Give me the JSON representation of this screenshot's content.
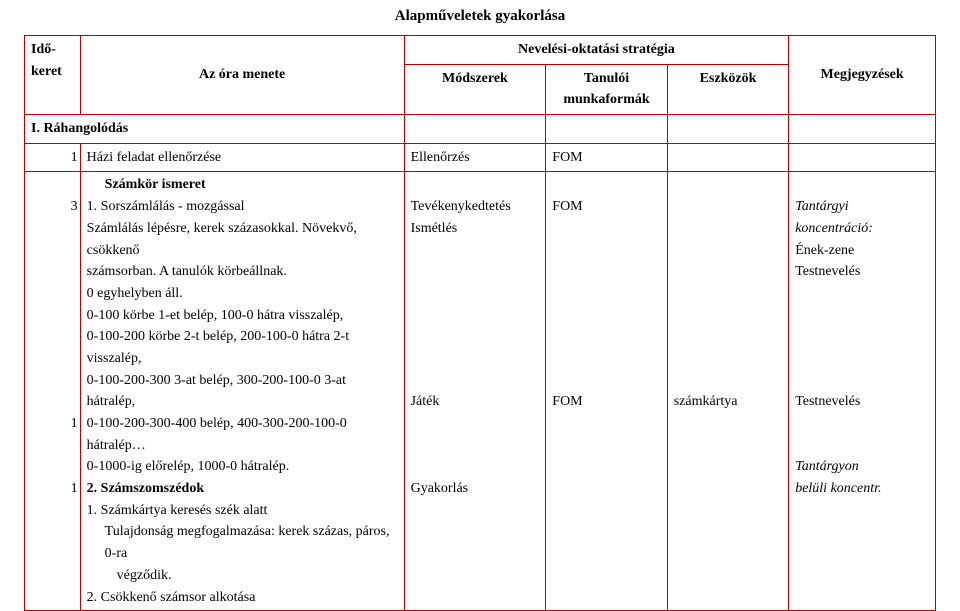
{
  "title": "Alapműveletek gyakorlása",
  "header": {
    "time_col_l1": "Idő-",
    "time_col_l2": "keret",
    "flow_col": "Az óra menete",
    "strategy_span": "Nevelési-oktatási stratégia",
    "method_col": "Módszerek",
    "form_col_l1": "Tanulói",
    "form_col_l2": "munkaformák",
    "tool_col": "Eszközök",
    "note_col": "Megjegyzések"
  },
  "section1": {
    "label": "I. Ráhangolódás",
    "r1_time": "1",
    "r1_flow": "Házi feladat ellenőrzése",
    "r1_method": "Ellenőrzés",
    "r1_form": "FOM"
  },
  "section2": {
    "heading": "Számkör ismeret",
    "t3": "3",
    "l1": "1. Sorszámlálás - mozgással",
    "l2": "Számlálás lépésre, kerek százasokkal. Növekvő, csökkenő",
    "l3": "számsorban. A tanulók körbeállnak.",
    "l4": "0 egyhelyben áll.",
    "l5": "0-100 körbe 1-et belép, 100-0 hátra visszalép,",
    "l6": "0-100-200 körbe 2-t belép, 200-100-0 hátra 2-t visszalép,",
    "l7": "0-100-200-300 3-at belép, 300-200-100-0 3-at hátralép,",
    "l8": "0-100-200-300-400 belép, 400-300-200-100-0 hátralép…",
    "l9": "0-1000-ig előrelép, 1000-0 hátralép.",
    "l10": "2. Számszomszédok",
    "t1a": "1",
    "l11": "1. Számkártya keresés szék alatt",
    "l12": "Tulajdonság megfogalmazása: kerek százas, páros, 0-ra",
    "l13": "végződik.",
    "t1b": "1",
    "l14": "2. Csökkenő számsor alkotása",
    "m_tevekeny": "Tevékenykedtetés",
    "m_ismetles": "Ismétlés",
    "m_jatek": "Játék",
    "m_gyak": "Gyakorlás",
    "f_fom": "FOM",
    "tool_kartya": "számkártya",
    "n_tantargyi": "Tantárgyi",
    "n_koncentracio": "koncentráció:",
    "n_enek": "Ének-zene",
    "n_testnev": "Testnevelés",
    "n_testnev2": "Testnevelés",
    "n_tantargyon": "Tantárgyon",
    "n_beluli": "belüli koncentr."
  }
}
